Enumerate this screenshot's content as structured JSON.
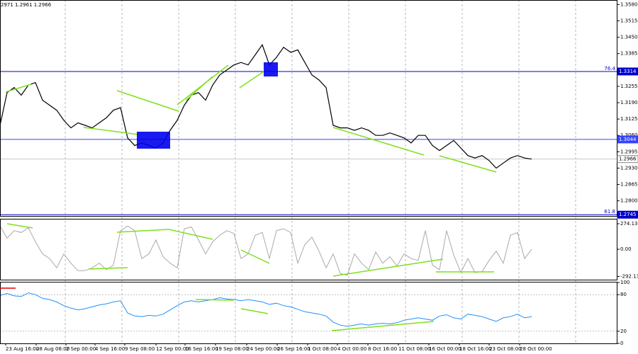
{
  "chart_data": [
    {
      "type": "line",
      "header": "2971 1.2961 1.2966",
      "color": "#000000",
      "x": [
        0,
        1,
        2,
        3,
        4,
        5,
        6,
        7,
        8,
        9,
        10,
        11,
        12,
        13,
        14,
        15,
        16,
        17,
        18,
        19,
        20,
        21,
        22,
        23,
        24,
        25,
        26,
        27,
        28,
        29,
        30,
        31,
        32,
        33,
        34,
        35,
        36,
        37,
        38,
        39,
        40,
        41,
        42,
        43,
        44,
        45,
        46,
        47,
        48,
        49,
        50,
        51,
        52,
        53,
        54,
        55,
        56,
        57,
        58,
        59,
        60,
        61,
        62,
        63,
        64,
        65,
        66,
        67,
        68,
        69,
        70,
        71,
        72,
        73,
        74,
        75
      ],
      "values": [
        1.31,
        1.323,
        1.325,
        1.322,
        1.326,
        1.327,
        1.32,
        1.318,
        1.316,
        1.312,
        1.309,
        1.311,
        1.31,
        1.309,
        1.311,
        1.313,
        1.316,
        1.317,
        1.305,
        1.302,
        1.303,
        1.302,
        1.301,
        1.303,
        1.308,
        1.312,
        1.318,
        1.322,
        1.323,
        1.32,
        1.326,
        1.33,
        1.332,
        1.334,
        1.335,
        1.334,
        1.338,
        1.342,
        1.334,
        1.337,
        1.341,
        1.339,
        1.34,
        1.335,
        1.33,
        1.328,
        1.325,
        1.31,
        1.309,
        1.309,
        1.308,
        1.309,
        1.308,
        1.306,
        1.306,
        1.307,
        1.306,
        1.305,
        1.303,
        1.306,
        1.306,
        1.302,
        1.3,
        1.302,
        1.304,
        1.301,
        1.298,
        1.297,
        1.298,
        1.296,
        1.293,
        1.295,
        1.297,
        1.298,
        1.297,
        1.2966
      ],
      "xlim": [
        0,
        87
      ],
      "ylim": [
        1.274,
        1.3598
      ],
      "xgrid": [
        9.2,
        17.2,
        25.2,
        33.2,
        41.2,
        49.2,
        57.2,
        65.2,
        73.2,
        81.2
      ],
      "yticks": [
        {
          "value": 1.358,
          "label": "1.3580"
        },
        {
          "value": 1.3515,
          "label": "1.3515"
        },
        {
          "value": 1.345,
          "label": "1.3450"
        },
        {
          "value": 1.3385,
          "label": "1.3385"
        },
        {
          "value": 1.3255,
          "label": "1.3255"
        },
        {
          "value": 1.319,
          "label": "1.3190"
        },
        {
          "value": 1.3125,
          "label": "1.3125"
        },
        {
          "value": 1.306,
          "label": "1.3060"
        },
        {
          "value": 1.2995,
          "label": "1.2995"
        },
        {
          "value": 1.293,
          "label": "1.2930"
        },
        {
          "value": 1.2865,
          "label": "1.2865"
        },
        {
          "value": 1.28,
          "label": "1.2800"
        }
      ],
      "hlines": [
        {
          "value": 1.3314,
          "label": "1.3314",
          "tag": "76.4",
          "color": "#0000cc"
        },
        {
          "value": 1.3044,
          "label": "1.3044",
          "color": "#3344ff"
        },
        {
          "value": 1.2966,
          "label": "1.2966",
          "color": "#c8c8c8"
        },
        {
          "value": 1.2745,
          "label": "1.2745",
          "tag": "61.8",
          "color": "#0000cc"
        }
      ]
    },
    {
      "type": "line",
      "color": "#a9a9a9",
      "x": [
        0,
        1,
        2,
        3,
        4,
        5,
        6,
        7,
        8,
        9,
        10,
        11,
        12,
        13,
        14,
        15,
        16,
        17,
        18,
        19,
        20,
        21,
        22,
        23,
        24,
        25,
        26,
        27,
        28,
        29,
        30,
        31,
        32,
        33,
        34,
        35,
        36,
        37,
        38,
        39,
        40,
        41,
        42,
        43,
        44,
        45,
        46,
        47,
        48,
        49,
        50,
        51,
        52,
        53,
        54,
        55,
        56,
        57,
        58,
        59,
        60,
        61,
        62,
        63,
        64,
        65,
        66,
        67,
        68,
        69,
        70,
        71,
        72,
        73,
        74,
        75
      ],
      "values": [
        250,
        120,
        200,
        180,
        230,
        80,
        -50,
        -100,
        -200,
        -50,
        -150,
        -230,
        -230,
        -200,
        -150,
        -220,
        -170,
        200,
        250,
        200,
        -100,
        -50,
        100,
        -80,
        -150,
        -200,
        220,
        240,
        100,
        -50,
        80,
        150,
        200,
        170,
        -100,
        -50,
        150,
        180,
        -100,
        200,
        220,
        180,
        -150,
        50,
        130,
        -20,
        -200,
        -50,
        -260,
        -280,
        -50,
        -150,
        -220,
        -30,
        -150,
        -80,
        -180,
        -50,
        -100,
        -120,
        200,
        -170,
        -220,
        200,
        -60,
        -250,
        -100,
        -250,
        -240,
        -120,
        -20,
        -150,
        150,
        180,
        -100,
        0
      ],
      "xlim": [
        0,
        87
      ],
      "ylim": [
        -327,
        320
      ],
      "yticks": [
        274.1308,
        {
          "value": 0,
          "label": "0.00"
        },
        -292.136
      ]
    },
    {
      "type": "line",
      "color": "#1e90ff",
      "x": [
        0,
        1,
        2,
        3,
        4,
        5,
        6,
        7,
        8,
        9,
        10,
        11,
        12,
        13,
        14,
        15,
        16,
        17,
        18,
        19,
        20,
        21,
        22,
        23,
        24,
        25,
        26,
        27,
        28,
        29,
        30,
        31,
        32,
        33,
        34,
        35,
        36,
        37,
        38,
        39,
        40,
        41,
        42,
        43,
        44,
        45,
        46,
        47,
        48,
        49,
        50,
        51,
        52,
        53,
        54,
        55,
        56,
        57,
        58,
        59,
        60,
        61,
        62,
        63,
        64,
        65,
        66,
        67,
        68,
        69,
        70,
        71,
        72,
        73,
        74,
        75
      ],
      "values": [
        79,
        82,
        78,
        77,
        83,
        80,
        74,
        72,
        68,
        62,
        58,
        55,
        57,
        60,
        63,
        65,
        68,
        70,
        50,
        45,
        44,
        46,
        45,
        48,
        55,
        62,
        68,
        70,
        68,
        70,
        72,
        75,
        73,
        72,
        70,
        72,
        70,
        68,
        64,
        66,
        62,
        60,
        56,
        52,
        50,
        48,
        45,
        35,
        30,
        28,
        30,
        32,
        30,
        32,
        33,
        32,
        34,
        38,
        40,
        42,
        40,
        38,
        45,
        47,
        42,
        40,
        48,
        46,
        44,
        40,
        36,
        42,
        44,
        48,
        42,
        44
      ],
      "xlim": [
        0,
        87
      ],
      "ylim": [
        0,
        100
      ],
      "yticks": [
        100,
        80,
        20,
        0
      ],
      "levels": [
        80,
        20
      ],
      "xticks": [
        {
          "value": 0.8,
          "label": "23 Aug 16:00"
        },
        {
          "value": 5.1,
          "label": "28 Aug 08:00"
        },
        {
          "value": 9.3,
          "label": "2 Sep 00:00"
        },
        {
          "value": 13.4,
          "label": "4 Sep 16:00"
        },
        {
          "value": 17.6,
          "label": "9 Sep 08:00"
        },
        {
          "value": 22,
          "label": "12 Sep 00:00"
        },
        {
          "value": 26.1,
          "label": "16 Sep 16:00"
        },
        {
          "value": 30.4,
          "label": "19 Sep 08:00"
        },
        {
          "value": 34.8,
          "label": "24 Sep 00:00"
        },
        {
          "value": 39.1,
          "label": "26 Sep 16:00"
        },
        {
          "value": 43.4,
          "label": "1 Oct 08:00"
        },
        {
          "value": 47.6,
          "label": "4 Oct 00:00"
        },
        {
          "value": 51.9,
          "label": "8 Oct 16:00"
        },
        {
          "value": 56.2,
          "label": "11 Oct 08:00"
        },
        {
          "value": 60.5,
          "label": "16 Oct 00:00"
        },
        {
          "value": 64.8,
          "label": "18 Oct 16:00"
        },
        {
          "value": 69,
          "label": "23 Oct 08:00"
        },
        {
          "value": 73.3,
          "label": "28 Oct 00:00"
        }
      ]
    }
  ]
}
